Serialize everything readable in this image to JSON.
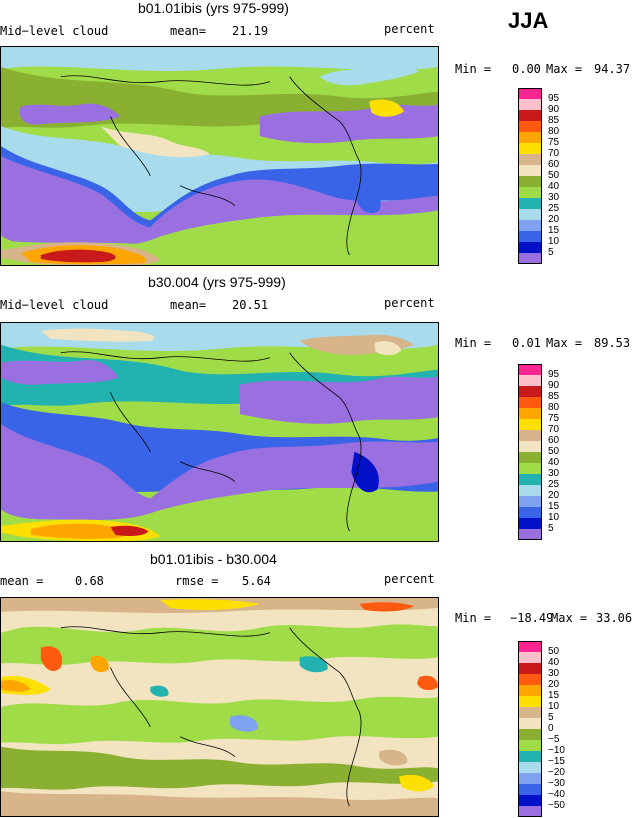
{
  "season": "JJA",
  "palette_abs": [
    "#9a6fe0",
    "#0011c8",
    "#3a64e8",
    "#7fa3f0",
    "#a8dced",
    "#22b2b0",
    "#a0dc48",
    "#8ab032",
    "#f2e4c0",
    "#d8b48a",
    "#fde000",
    "#ffa500",
    "#ff5a10",
    "#c81a1a",
    "#ffc0cb",
    "#ff2590"
  ],
  "palette_diff": [
    "#9a6fe0",
    "#0011c8",
    "#3a64e8",
    "#7fa3f0",
    "#a8dced",
    "#22b2b0",
    "#a0dc48",
    "#8ab032",
    "#f2e4c0",
    "#d8b48a",
    "#fde000",
    "#ffa500",
    "#ff5a10",
    "#c81a1a",
    "#ffc0cb",
    "#ff2590"
  ],
  "panels": [
    {
      "title": "b01.01ibis (yrs 975-999)",
      "left_label": "Mid−level cloud",
      "mean_label": "mean=",
      "mean_value": "21.19",
      "units": "percent",
      "min_label": "Min =",
      "min_value": "0.00",
      "max_label": "Max =",
      "max_value": "94.37",
      "colorbar_labels": [
        "95",
        "90",
        "85",
        "80",
        "75",
        "70",
        "60",
        "50",
        "40",
        "30",
        "25",
        "20",
        "15",
        "10",
        "5"
      ]
    },
    {
      "title": "b30.004 (yrs 975-999)",
      "left_label": "Mid−level cloud",
      "mean_label": "mean=",
      "mean_value": "20.51",
      "units": "percent",
      "min_label": "Min =",
      "min_value": "0.01",
      "max_label": "Max =",
      "max_value": "89.53",
      "colorbar_labels": [
        "95",
        "90",
        "85",
        "80",
        "75",
        "70",
        "60",
        "50",
        "40",
        "30",
        "25",
        "20",
        "15",
        "10",
        "5"
      ]
    },
    {
      "title": "b01.01ibis - b30.004",
      "left_label": "mean =",
      "mean_label": "",
      "mean_value": "0.68",
      "rmse_label": "rmse =",
      "rmse_value": "5.64",
      "units": "percent",
      "min_label": "Min =",
      "min_value": "−18.49",
      "max_label": "Max =",
      "max_value": "33.06",
      "colorbar_labels": [
        "50",
        "40",
        "30",
        "20",
        "15",
        "10",
        "5",
        "0",
        "−5",
        "−10",
        "−15",
        "−20",
        "−30",
        "−40",
        "−50"
      ]
    }
  ],
  "chart_data": [
    {
      "type": "heatmap",
      "title": "b01.01ibis (yrs 975-999)",
      "variable": "Mid−level cloud",
      "units": "percent",
      "mean": 21.19,
      "min": 0.0,
      "max": 94.37,
      "contour_levels": [
        5,
        10,
        15,
        20,
        25,
        30,
        40,
        50,
        60,
        70,
        75,
        80,
        85,
        90,
        95
      ]
    },
    {
      "type": "heatmap",
      "title": "b30.004 (yrs 975-999)",
      "variable": "Mid−level cloud",
      "units": "percent",
      "mean": 20.51,
      "min": 0.01,
      "max": 89.53,
      "contour_levels": [
        5,
        10,
        15,
        20,
        25,
        30,
        40,
        50,
        60,
        70,
        75,
        80,
        85,
        90,
        95
      ]
    },
    {
      "type": "heatmap",
      "title": "b01.01ibis - b30.004",
      "units": "percent",
      "mean": 0.68,
      "rmse": 5.64,
      "min": -18.49,
      "max": 33.06,
      "contour_levels": [
        -50,
        -40,
        -30,
        -20,
        -15,
        -10,
        -5,
        0,
        5,
        10,
        15,
        20,
        30,
        40,
        50
      ]
    }
  ]
}
